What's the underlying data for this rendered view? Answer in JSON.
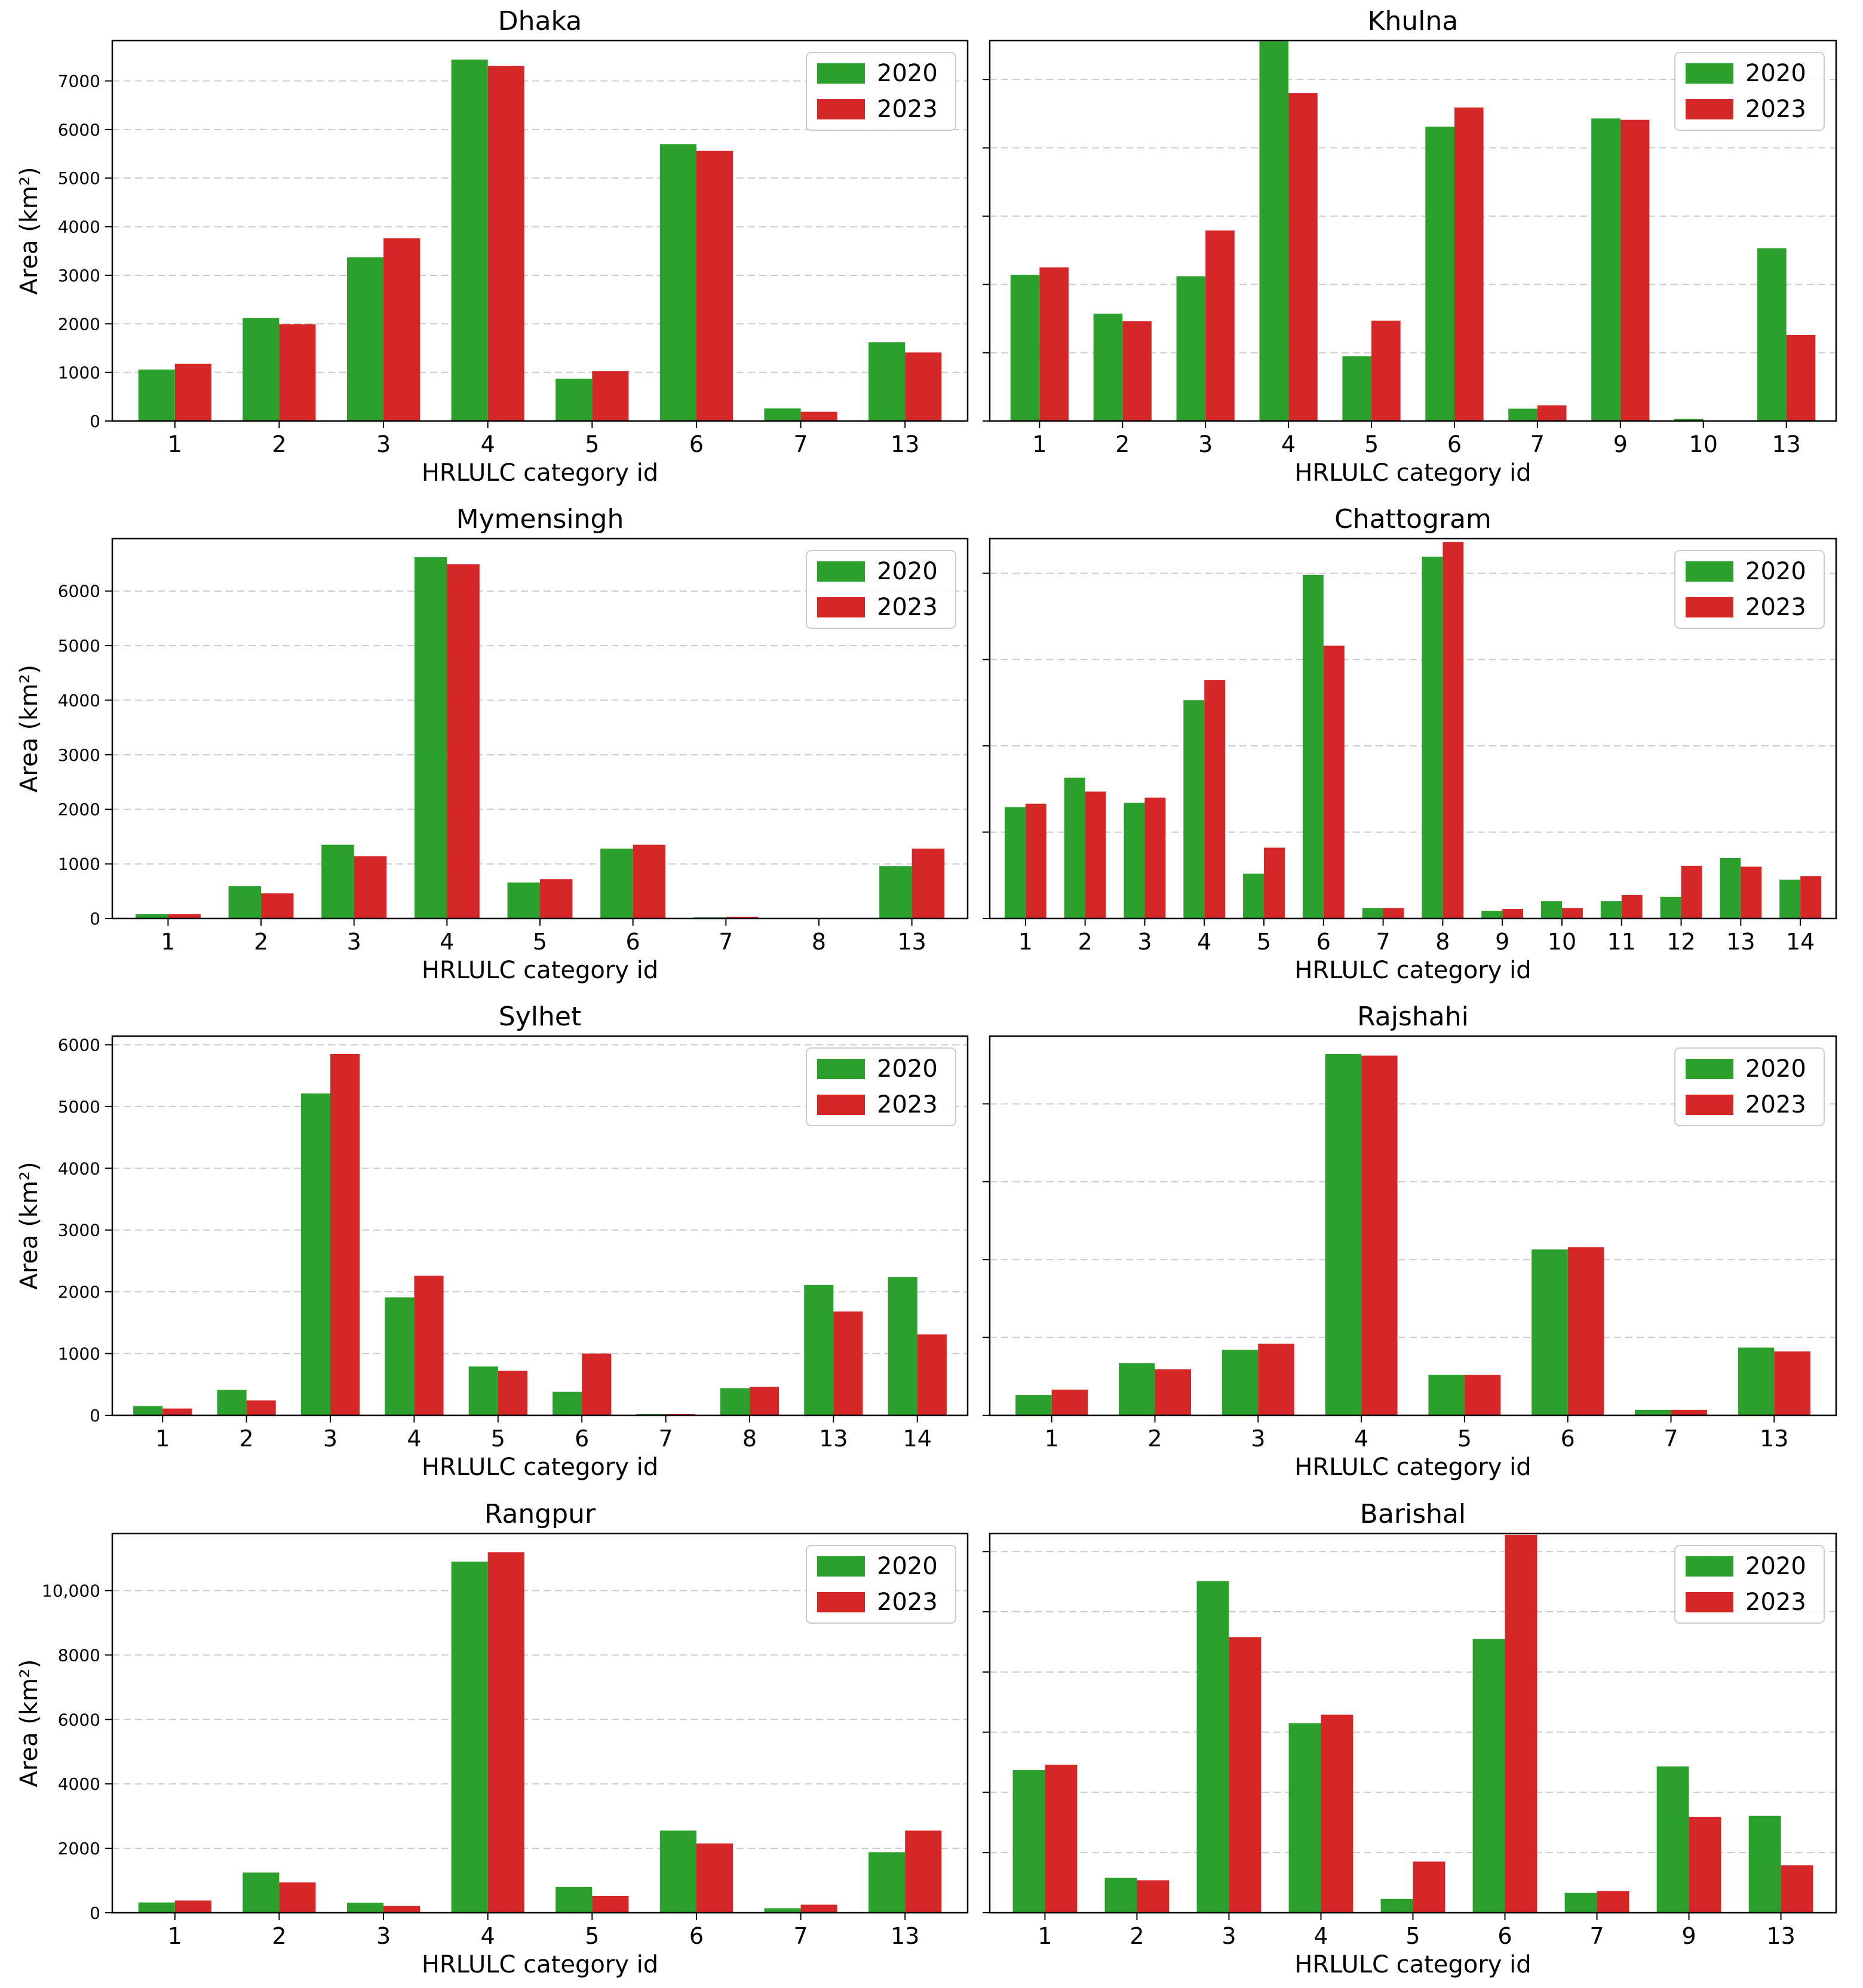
{
  "colors": {
    "2020": "#2ca02c",
    "2023": "#d62728",
    "grid": "#cccccc"
  },
  "chart_data": [
    {
      "type": "bar",
      "title": "Dhaka",
      "xlabel": "HRLULC category id",
      "ylabel": "Area (km²)",
      "categories": [
        "1",
        "2",
        "3",
        "4",
        "5",
        "6",
        "7",
        "13"
      ],
      "ylim": [
        0,
        7830
      ],
      "yticks": [
        0,
        1000,
        2000,
        3000,
        4000,
        5000,
        6000,
        7000
      ],
      "ytick_labels": [
        "0",
        "1000",
        "2000",
        "3000",
        "4000",
        "5000",
        "6000",
        "7000"
      ],
      "legend_position": "top-right",
      "grid": "horizontal-dashed",
      "series": [
        {
          "name": "2020",
          "values": [
            1060,
            2120,
            3370,
            7440,
            870,
            5700,
            260,
            1620
          ]
        },
        {
          "name": "2023",
          "values": [
            1180,
            1990,
            3760,
            7310,
            1030,
            5560,
            190,
            1410
          ]
        }
      ]
    },
    {
      "type": "bar",
      "title": "Khulna",
      "xlabel": "HRLULC category id",
      "ylabel": "",
      "categories": [
        "1",
        "2",
        "3",
        "4",
        "5",
        "6",
        "7",
        "9",
        "10",
        "13"
      ],
      "ylim": [
        0,
        5570
      ],
      "yticks": [
        0,
        1000,
        2000,
        3000,
        4000,
        5000
      ],
      "ytick_labels": [
        "",
        "",
        "",
        "",
        "",
        ""
      ],
      "legend_position": "top-right",
      "grid": "horizontal-dashed",
      "series": [
        {
          "name": "2020",
          "values": [
            2140,
            1570,
            2120,
            5560,
            950,
            4310,
            180,
            4430,
            30,
            2530
          ]
        },
        {
          "name": "2023",
          "values": [
            2250,
            1460,
            2790,
            4800,
            1470,
            4590,
            230,
            4410,
            0,
            1260
          ]
        }
      ]
    },
    {
      "type": "bar",
      "title": "Mymensingh",
      "xlabel": "HRLULC category id",
      "ylabel": "Area (km²)",
      "categories": [
        "1",
        "2",
        "3",
        "4",
        "5",
        "6",
        "7",
        "8",
        "13"
      ],
      "ylim": [
        0,
        6960
      ],
      "yticks": [
        0,
        1000,
        2000,
        3000,
        4000,
        5000,
        6000
      ],
      "ytick_labels": [
        "0",
        "1000",
        "2000",
        "3000",
        "4000",
        "5000",
        "6000"
      ],
      "legend_position": "top-right",
      "grid": "horizontal-dashed",
      "series": [
        {
          "name": "2020",
          "values": [
            80,
            590,
            1350,
            6620,
            660,
            1280,
            20,
            0,
            960
          ]
        },
        {
          "name": "2023",
          "values": [
            80,
            460,
            1140,
            6490,
            720,
            1350,
            30,
            10,
            1280
          ]
        }
      ]
    },
    {
      "type": "bar",
      "title": "Chattogram",
      "xlabel": "HRLULC category id",
      "ylabel": "",
      "categories": [
        "1",
        "2",
        "3",
        "4",
        "5",
        "6",
        "7",
        "8",
        "9",
        "10",
        "11",
        "12",
        "13",
        "14"
      ],
      "ylim": [
        0,
        4400
      ],
      "yticks": [
        0,
        1000,
        2000,
        3000,
        4000
      ],
      "ytick_labels": [
        "",
        "",
        "",
        "",
        ""
      ],
      "legend_position": "top-right",
      "grid": "horizontal-dashed",
      "series": [
        {
          "name": "2020",
          "values": [
            1290,
            1630,
            1340,
            2530,
            520,
            3980,
            120,
            4190,
            90,
            200,
            200,
            250,
            700,
            450
          ]
        },
        {
          "name": "2023",
          "values": [
            1330,
            1470,
            1400,
            2760,
            820,
            3160,
            120,
            4360,
            110,
            120,
            270,
            610,
            600,
            490
          ]
        }
      ]
    },
    {
      "type": "bar",
      "title": "Sylhet",
      "xlabel": "HRLULC category id",
      "ylabel": "Area (km²)",
      "categories": [
        "1",
        "2",
        "3",
        "4",
        "5",
        "6",
        "7",
        "8",
        "13",
        "14"
      ],
      "ylim": [
        0,
        6140
      ],
      "yticks": [
        0,
        1000,
        2000,
        3000,
        4000,
        5000,
        6000
      ],
      "ytick_labels": [
        "0",
        "1000",
        "2000",
        "3000",
        "4000",
        "5000",
        "6000"
      ],
      "legend_position": "top-right",
      "grid": "horizontal-dashed",
      "series": [
        {
          "name": "2020",
          "values": [
            150,
            410,
            5210,
            1910,
            790,
            380,
            20,
            440,
            2110,
            2240
          ]
        },
        {
          "name": "2023",
          "values": [
            110,
            240,
            5850,
            2260,
            720,
            1000,
            20,
            460,
            1680,
            1310
          ]
        }
      ]
    },
    {
      "type": "bar",
      "title": "Rajshahi",
      "xlabel": "HRLULC category id",
      "ylabel": "",
      "categories": [
        "1",
        "2",
        "3",
        "4",
        "5",
        "6",
        "7",
        "13"
      ],
      "ylim": [
        0,
        4870
      ],
      "yticks": [
        0,
        1000,
        2000,
        3000,
        4000
      ],
      "ytick_labels": [
        "",
        "",
        "",
        "",
        ""
      ],
      "legend_position": "top-right",
      "grid": "horizontal-dashed",
      "series": [
        {
          "name": "2020",
          "values": [
            260,
            670,
            840,
            4640,
            520,
            2130,
            70,
            870
          ]
        },
        {
          "name": "2023",
          "values": [
            330,
            590,
            920,
            4620,
            520,
            2160,
            70,
            820
          ]
        }
      ]
    },
    {
      "type": "bar",
      "title": "Rangpur",
      "xlabel": "HRLULC category id",
      "ylabel": "Area (km²)",
      "categories": [
        "1",
        "2",
        "3",
        "4",
        "5",
        "6",
        "7",
        "13"
      ],
      "ylim": [
        0,
        11770
      ],
      "yticks": [
        0,
        2000,
        4000,
        6000,
        8000,
        10000
      ],
      "ytick_labels": [
        "0",
        "2000",
        "4000",
        "6000",
        "8000",
        "10,000"
      ],
      "legend_position": "top-right",
      "grid": "horizontal-dashed",
      "series": [
        {
          "name": "2020",
          "values": [
            320,
            1250,
            310,
            10900,
            800,
            2550,
            140,
            1880
          ]
        },
        {
          "name": "2023",
          "values": [
            380,
            940,
            210,
            11190,
            520,
            2150,
            250,
            2550
          ]
        }
      ]
    },
    {
      "type": "bar",
      "title": "Barishal",
      "xlabel": "HRLULC category id",
      "ylabel": "",
      "categories": [
        "1",
        "2",
        "3",
        "4",
        "5",
        "6",
        "7",
        "9",
        "13"
      ],
      "ylim": [
        0,
        6300
      ],
      "yticks": [
        0,
        1000,
        2000,
        3000,
        4000,
        5000,
        6000
      ],
      "ytick_labels": [
        "",
        "",
        "",
        "",
        "",
        "",
        ""
      ],
      "legend_position": "top-right",
      "grid": "horizontal-dashed",
      "series": [
        {
          "name": "2020",
          "values": [
            2370,
            580,
            5510,
            3150,
            230,
            4550,
            330,
            2430,
            1610
          ]
        },
        {
          "name": "2023",
          "values": [
            2460,
            540,
            4580,
            3290,
            850,
            6280,
            360,
            1590,
            790
          ]
        }
      ]
    }
  ]
}
